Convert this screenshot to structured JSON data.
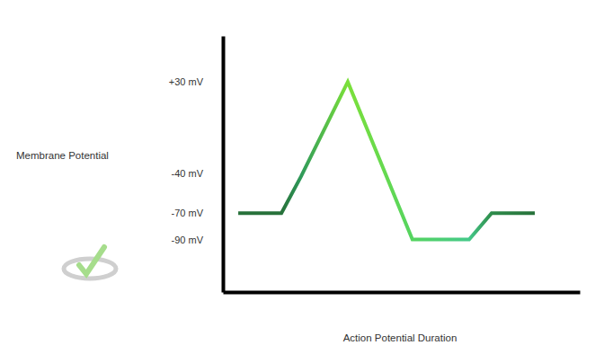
{
  "chart_data": {
    "type": "line",
    "x_label": "Action Potential Duration",
    "y_label": "Membrane Potential",
    "x": [
      4.3,
      16.4,
      21.9,
      35,
      53.1,
      69,
      75.3,
      87.4
    ],
    "values": [
      -70,
      -70,
      -42,
      30,
      -90,
      -90,
      -70,
      -70
    ],
    "colors": [
      "#27713a",
      "#27713a",
      "#2f9a5a",
      "#7be03a",
      "#55d460",
      "#45c98a",
      "#2e8b4a",
      "#27713a"
    ],
    "xlim": [
      0,
      100
    ],
    "ylim": [
      -130,
      65
    ],
    "yticks": [
      {
        "value": 30,
        "label": "+30 mV"
      },
      {
        "value": -40,
        "label": "-40 mV"
      },
      {
        "value": -70,
        "label": "-70 mV"
      },
      {
        "value": -90,
        "label": "-90 mV"
      }
    ],
    "tick_labels": "y",
    "grid": false
  }
}
